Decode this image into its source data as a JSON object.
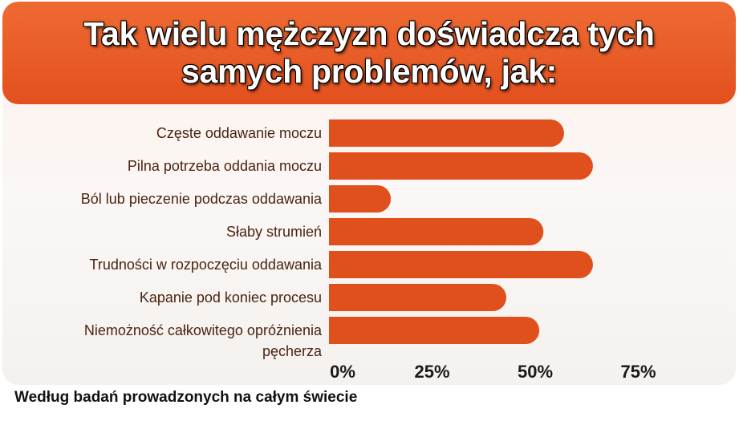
{
  "title": "Tak wielu mężczyzn doświadcza tych samych problemów, jak:",
  "footer": "Według badań prowadzonych na całym świecie",
  "colors": {
    "banner": "#e85a26",
    "bar": "#e0501c",
    "label": "#4a2410"
  },
  "chart_data": {
    "type": "bar",
    "orientation": "horizontal",
    "categories": [
      "Częste oddawanie moczu",
      "Pilna potrzeba oddania moczu",
      "Ból lub pieczenie podczas oddawania",
      "Słaby strumień",
      "Trudności w rozpoczęciu oddawania",
      "Kapanie pod koniec procesu",
      "Niemożność całkowitego opróżnienia pęcherza"
    ],
    "values": [
      57,
      64,
      15,
      52,
      64,
      43,
      51
    ],
    "xlim": [
      0,
      75
    ],
    "xticks": [
      "0%",
      "25%",
      "50%",
      "75%"
    ],
    "xtick_values": [
      0,
      25,
      50,
      75
    ],
    "grid": false
  }
}
